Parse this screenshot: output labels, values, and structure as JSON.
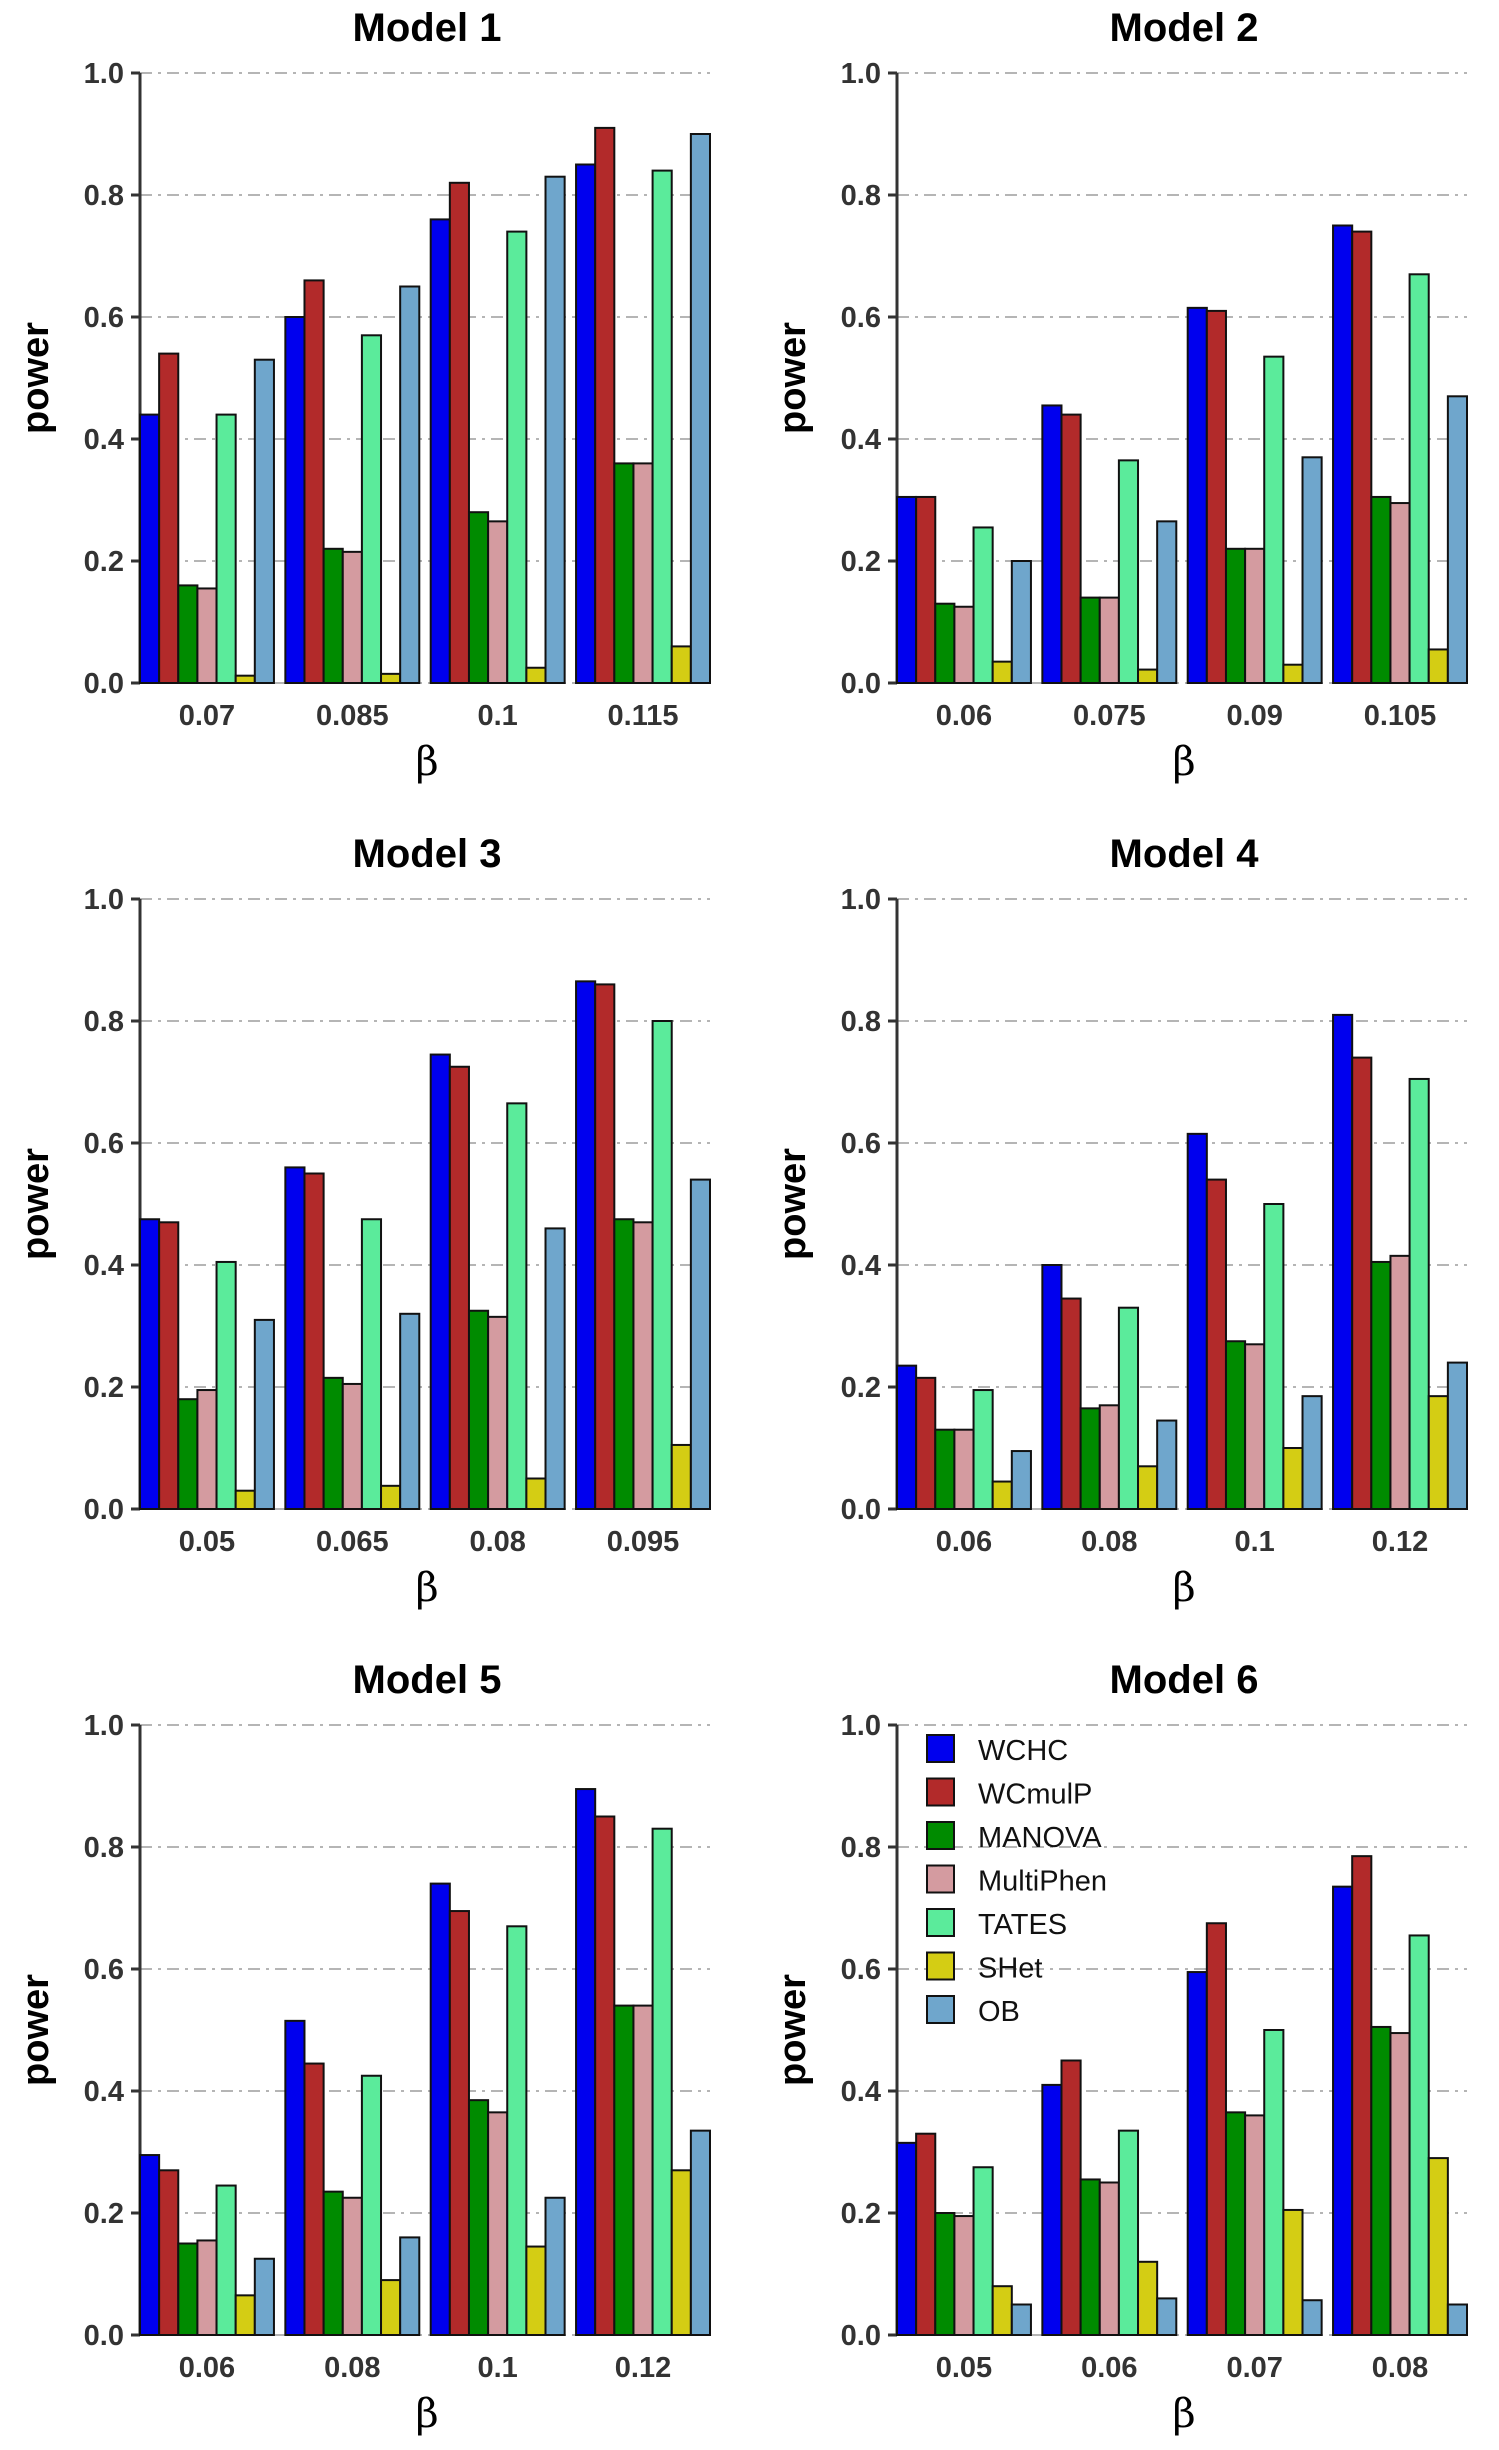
{
  "series_names": [
    "WCHC",
    "WCmulP",
    "MANOVA",
    "MultiPhen",
    "TATES",
    "SHet",
    "OB"
  ],
  "colors": {
    "WCHC": "#0000ee",
    "WCmulP": "#b22a2a",
    "MANOVA": "#008b00",
    "MultiPhen": "#d49ba0",
    "TATES": "#5beb9b",
    "SHet": "#d4cd14",
    "OB": "#6fa6cc"
  },
  "y_tick_labels": [
    "0.0",
    "0.2",
    "0.4",
    "0.6",
    "0.8",
    "1.0"
  ],
  "legend": {
    "panel_index": 5,
    "items": [
      "WCHC",
      "WCmulP",
      "MANOVA",
      "MultiPhen",
      "TATES",
      "SHet",
      "OB"
    ]
  },
  "chart_data": [
    {
      "type": "bar",
      "title": "Model 1",
      "xlabel": "β",
      "ylabel": "power",
      "ylim": [
        0,
        1
      ],
      "categories": [
        "0.07",
        "0.085",
        "0.1",
        "0.115"
      ],
      "series": [
        {
          "name": "WCHC",
          "values": [
            0.44,
            0.6,
            0.76,
            0.85
          ]
        },
        {
          "name": "WCmulP",
          "values": [
            0.54,
            0.66,
            0.82,
            0.91
          ]
        },
        {
          "name": "MANOVA",
          "values": [
            0.16,
            0.22,
            0.28,
            0.36
          ]
        },
        {
          "name": "MultiPhen",
          "values": [
            0.155,
            0.215,
            0.265,
            0.36
          ]
        },
        {
          "name": "TATES",
          "values": [
            0.44,
            0.57,
            0.74,
            0.84
          ]
        },
        {
          "name": "SHet",
          "values": [
            0.012,
            0.015,
            0.025,
            0.06
          ]
        },
        {
          "name": "OB",
          "values": [
            0.53,
            0.65,
            0.83,
            0.9
          ]
        }
      ]
    },
    {
      "type": "bar",
      "title": "Model 2",
      "xlabel": "β",
      "ylabel": "power",
      "ylim": [
        0,
        1
      ],
      "categories": [
        "0.06",
        "0.075",
        "0.09",
        "0.105"
      ],
      "series": [
        {
          "name": "WCHC",
          "values": [
            0.305,
            0.455,
            0.615,
            0.75
          ]
        },
        {
          "name": "WCmulP",
          "values": [
            0.305,
            0.44,
            0.61,
            0.74
          ]
        },
        {
          "name": "MANOVA",
          "values": [
            0.13,
            0.14,
            0.22,
            0.305
          ]
        },
        {
          "name": "MultiPhen",
          "values": [
            0.125,
            0.14,
            0.22,
            0.295
          ]
        },
        {
          "name": "TATES",
          "values": [
            0.255,
            0.365,
            0.535,
            0.67
          ]
        },
        {
          "name": "SHet",
          "values": [
            0.035,
            0.022,
            0.03,
            0.055
          ]
        },
        {
          "name": "OB",
          "values": [
            0.2,
            0.265,
            0.37,
            0.47
          ]
        }
      ]
    },
    {
      "type": "bar",
      "title": "Model 3",
      "xlabel": "β",
      "ylabel": "power",
      "ylim": [
        0,
        1
      ],
      "categories": [
        "0.05",
        "0.065",
        "0.08",
        "0.095"
      ],
      "series": [
        {
          "name": "WCHC",
          "values": [
            0.475,
            0.56,
            0.745,
            0.865
          ]
        },
        {
          "name": "WCmulP",
          "values": [
            0.47,
            0.55,
            0.725,
            0.86
          ]
        },
        {
          "name": "MANOVA",
          "values": [
            0.18,
            0.215,
            0.325,
            0.475
          ]
        },
        {
          "name": "MultiPhen",
          "values": [
            0.195,
            0.205,
            0.315,
            0.47
          ]
        },
        {
          "name": "TATES",
          "values": [
            0.405,
            0.475,
            0.665,
            0.8
          ]
        },
        {
          "name": "SHet",
          "values": [
            0.03,
            0.038,
            0.05,
            0.105
          ]
        },
        {
          "name": "OB",
          "values": [
            0.31,
            0.32,
            0.46,
            0.54
          ]
        }
      ]
    },
    {
      "type": "bar",
      "title": "Model 4",
      "xlabel": "β",
      "ylabel": "power",
      "ylim": [
        0,
        1
      ],
      "categories": [
        "0.06",
        "0.08",
        "0.1",
        "0.12"
      ],
      "series": [
        {
          "name": "WCHC",
          "values": [
            0.235,
            0.4,
            0.615,
            0.81
          ]
        },
        {
          "name": "WCmulP",
          "values": [
            0.215,
            0.345,
            0.54,
            0.74
          ]
        },
        {
          "name": "MANOVA",
          "values": [
            0.13,
            0.165,
            0.275,
            0.405
          ]
        },
        {
          "name": "MultiPhen",
          "values": [
            0.13,
            0.17,
            0.27,
            0.415
          ]
        },
        {
          "name": "TATES",
          "values": [
            0.195,
            0.33,
            0.5,
            0.705
          ]
        },
        {
          "name": "SHet",
          "values": [
            0.045,
            0.07,
            0.1,
            0.185
          ]
        },
        {
          "name": "OB",
          "values": [
            0.095,
            0.145,
            0.185,
            0.24
          ]
        }
      ]
    },
    {
      "type": "bar",
      "title": "Model 5",
      "xlabel": "β",
      "ylabel": "power",
      "ylim": [
        0,
        1
      ],
      "categories": [
        "0.06",
        "0.08",
        "0.1",
        "0.12"
      ],
      "series": [
        {
          "name": "WCHC",
          "values": [
            0.295,
            0.515,
            0.74,
            0.895
          ]
        },
        {
          "name": "WCmulP",
          "values": [
            0.27,
            0.445,
            0.695,
            0.85
          ]
        },
        {
          "name": "MANOVA",
          "values": [
            0.15,
            0.235,
            0.385,
            0.54
          ]
        },
        {
          "name": "MultiPhen",
          "values": [
            0.155,
            0.225,
            0.365,
            0.54
          ]
        },
        {
          "name": "TATES",
          "values": [
            0.245,
            0.425,
            0.67,
            0.83
          ]
        },
        {
          "name": "SHet",
          "values": [
            0.065,
            0.09,
            0.145,
            0.27
          ]
        },
        {
          "name": "OB",
          "values": [
            0.125,
            0.16,
            0.225,
            0.335
          ]
        }
      ]
    },
    {
      "type": "bar",
      "title": "Model 6",
      "xlabel": "β",
      "ylabel": "power",
      "ylim": [
        0,
        1
      ],
      "categories": [
        "0.05",
        "0.06",
        "0.07",
        "0.08"
      ],
      "series": [
        {
          "name": "WCHC",
          "values": [
            0.315,
            0.41,
            0.595,
            0.735
          ]
        },
        {
          "name": "WCmulP",
          "values": [
            0.33,
            0.45,
            0.675,
            0.785
          ]
        },
        {
          "name": "MANOVA",
          "values": [
            0.2,
            0.255,
            0.365,
            0.505
          ]
        },
        {
          "name": "MultiPhen",
          "values": [
            0.195,
            0.25,
            0.36,
            0.495
          ]
        },
        {
          "name": "TATES",
          "values": [
            0.275,
            0.335,
            0.5,
            0.655
          ]
        },
        {
          "name": "SHet",
          "values": [
            0.08,
            0.12,
            0.205,
            0.29
          ]
        },
        {
          "name": "OB",
          "values": [
            0.05,
            0.06,
            0.057,
            0.05
          ]
        }
      ]
    }
  ]
}
